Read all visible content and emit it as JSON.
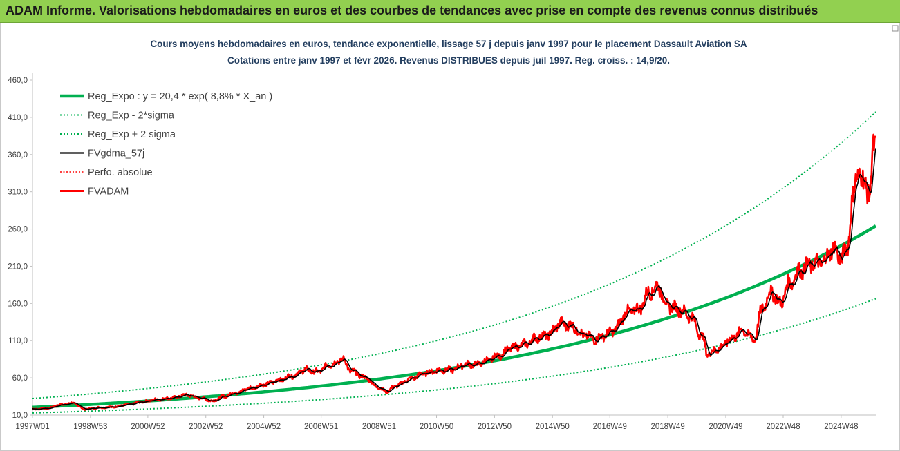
{
  "header": {
    "title": "ADAM Informe. Valorisations hebdomadaires en euros et des courbes de tendances avec prise en compte des revenus connus distribués"
  },
  "chart_data": {
    "type": "line",
    "title_line1": "Cours moyens hebdomadaires en euros, tendance exponentielle, lissage 57 j depuis janv 1997 pour le placement Dassault Aviation SA",
    "title_line2": "Cotations entre janv 1997 et févr 2026. Revenus DISTRIBUES depuis juil 1997. Reg. croiss. : 14,9/20.",
    "xlabel": "",
    "ylabel": "",
    "ylim": [
      10,
      460
    ],
    "y_ticks": [
      "10,0",
      "60,0",
      "110,0",
      "160,0",
      "210,0",
      "260,0",
      "310,0",
      "360,0",
      "410,0",
      "460,0"
    ],
    "x_ticks": [
      "1997W01",
      "1998W53",
      "2000W52",
      "2002W52",
      "2004W52",
      "2006W51",
      "2008W51",
      "2010W50",
      "2012W50",
      "2014W50",
      "2016W49",
      "2018W49",
      "2020W49",
      "2022W48",
      "2024W48"
    ],
    "x_range": [
      1997.0,
      2026.1
    ],
    "grid": false,
    "legend_placement": "top-left",
    "colors": {
      "reg_expo": "#00b050",
      "band": "#00b050",
      "gdma": "#000000",
      "perfo": "#ff0000",
      "fvadam": "#ff0000"
    },
    "regression": {
      "a": 20.4,
      "rate": 0.088,
      "start_year": 1997.0,
      "minus_2sigma_factor": 0.63,
      "plus_2sigma_factor": 1.58
    },
    "series": [
      {
        "name": "Reg_Expo : y = 20,4 * exp( 8,8% *  X_an )",
        "style": "solid-thick-green"
      },
      {
        "name": "Reg_Exp - 2*sigma",
        "style": "dotted-green"
      },
      {
        "name": "Reg_Exp + 2 sigma",
        "style": "dotted-green"
      },
      {
        "name": "FVgdma_57j",
        "style": "solid-black"
      },
      {
        "name": "Perfo. absolue",
        "style": "dotted-red"
      },
      {
        "name": "FVADAM",
        "style": "solid-red",
        "points": [
          [
            1997.0,
            18
          ],
          [
            1997.5,
            19
          ],
          [
            1998.0,
            24
          ],
          [
            1998.4,
            26
          ],
          [
            1998.8,
            18
          ],
          [
            1999.3,
            20
          ],
          [
            1999.8,
            21
          ],
          [
            2000.3,
            24
          ],
          [
            2000.8,
            28
          ],
          [
            2001.3,
            31
          ],
          [
            2001.8,
            33
          ],
          [
            2002.3,
            37
          ],
          [
            2002.8,
            33
          ],
          [
            2003.2,
            29
          ],
          [
            2003.6,
            35
          ],
          [
            2004.0,
            40
          ],
          [
            2004.5,
            46
          ],
          [
            2005.0,
            51
          ],
          [
            2005.5,
            57
          ],
          [
            2006.0,
            63
          ],
          [
            2006.4,
            71
          ],
          [
            2006.8,
            68
          ],
          [
            2007.3,
            78
          ],
          [
            2007.7,
            85
          ],
          [
            2008.0,
            69
          ],
          [
            2008.5,
            60
          ],
          [
            2008.9,
            48
          ],
          [
            2009.2,
            42
          ],
          [
            2009.6,
            50
          ],
          [
            2010.0,
            58
          ],
          [
            2010.5,
            66
          ],
          [
            2011.0,
            70
          ],
          [
            2011.5,
            71
          ],
          [
            2011.9,
            78
          ],
          [
            2012.3,
            78
          ],
          [
            2012.7,
            83
          ],
          [
            2013.1,
            90
          ],
          [
            2013.5,
            100
          ],
          [
            2014.0,
            105
          ],
          [
            2014.4,
            114
          ],
          [
            2014.8,
            118
          ],
          [
            2015.2,
            133
          ],
          [
            2015.6,
            130
          ],
          [
            2016.0,
            118
          ],
          [
            2016.4,
            112
          ],
          [
            2016.8,
            118
          ],
          [
            2017.1,
            125
          ],
          [
            2017.5,
            148
          ],
          [
            2017.9,
            152
          ],
          [
            2018.3,
            176
          ],
          [
            2018.6,
            183
          ],
          [
            2018.9,
            157
          ],
          [
            2019.3,
            152
          ],
          [
            2019.7,
            143
          ],
          [
            2020.1,
            116
          ],
          [
            2020.3,
            92
          ],
          [
            2020.7,
            100
          ],
          [
            2021.1,
            112
          ],
          [
            2021.5,
            124
          ],
          [
            2021.9,
            112
          ],
          [
            2022.2,
            155
          ],
          [
            2022.5,
            176
          ],
          [
            2022.8,
            160
          ],
          [
            2023.1,
            186
          ],
          [
            2023.5,
            205
          ],
          [
            2023.9,
            213
          ],
          [
            2024.3,
            216
          ],
          [
            2024.6,
            234
          ],
          [
            2024.9,
            222
          ],
          [
            2025.1,
            232
          ],
          [
            2025.3,
            300
          ],
          [
            2025.5,
            340
          ],
          [
            2025.7,
            318
          ],
          [
            2025.9,
            312
          ],
          [
            2026.0,
            362
          ],
          [
            2026.1,
            372
          ]
        ]
      }
    ]
  }
}
